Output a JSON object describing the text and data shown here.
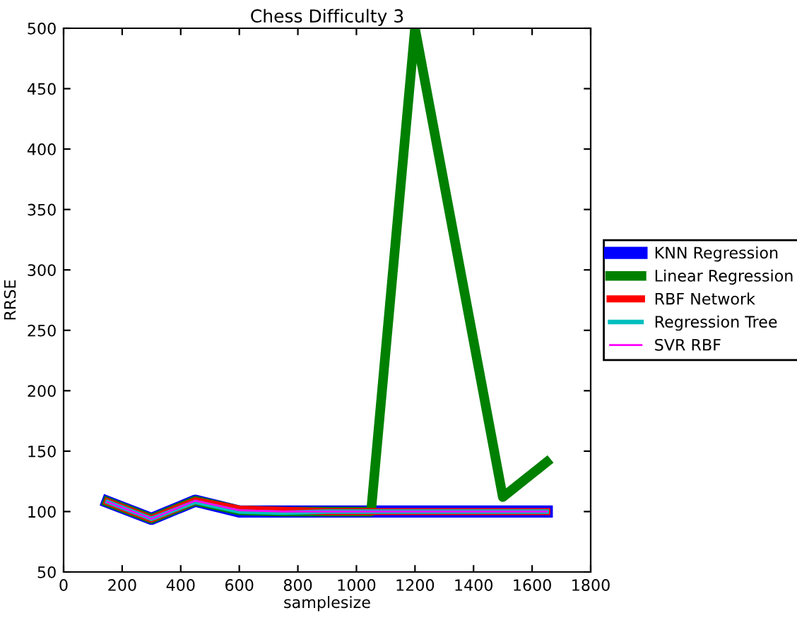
{
  "chart_data": {
    "type": "line",
    "title": "Chess Difficulty 3",
    "xlabel": "samplesize",
    "ylabel": "RRSE",
    "x": [
      150,
      300,
      450,
      600,
      750,
      900,
      1050,
      1200,
      1350,
      1500,
      1650
    ],
    "series": [
      {
        "name": "KNN Regression",
        "color": "#0000ff",
        "values": [
          108,
          94,
          109,
          100,
          100,
          100,
          100,
          100,
          100,
          100,
          100
        ]
      },
      {
        "name": "Linear Regression",
        "color": "#008000",
        "x": [
          150,
          300,
          450,
          600,
          750,
          900,
          1050,
          1200,
          1500,
          1650
        ],
        "values": [
          108,
          94,
          109,
          101,
          100,
          100,
          100,
          500,
          112,
          141
        ]
      },
      {
        "name": "RBF Network",
        "color": "#ff0000",
        "values": [
          108,
          94,
          109,
          102,
          101,
          100,
          100,
          100,
          100,
          100,
          100
        ]
      },
      {
        "name": "Regression Tree",
        "color": "#00bfbf",
        "values": [
          108,
          94,
          108,
          100,
          99,
          100,
          100,
          100,
          100,
          100,
          100
        ]
      },
      {
        "name": "SVR RBF",
        "color": "#ff00ff",
        "values": [
          108,
          94,
          109,
          101,
          100,
          100,
          100,
          100,
          100,
          100,
          100
        ]
      }
    ],
    "xlim": [
      0,
      1800
    ],
    "xticks": [
      0,
      200,
      400,
      600,
      800,
      1000,
      1200,
      1400,
      1600,
      1800
    ],
    "ylim": [
      50,
      500
    ],
    "yticks": [
      50,
      100,
      150,
      200,
      250,
      300,
      350,
      400,
      450,
      500
    ],
    "grid": false,
    "legend": "right",
    "marker": "none",
    "line_style": "solid"
  }
}
